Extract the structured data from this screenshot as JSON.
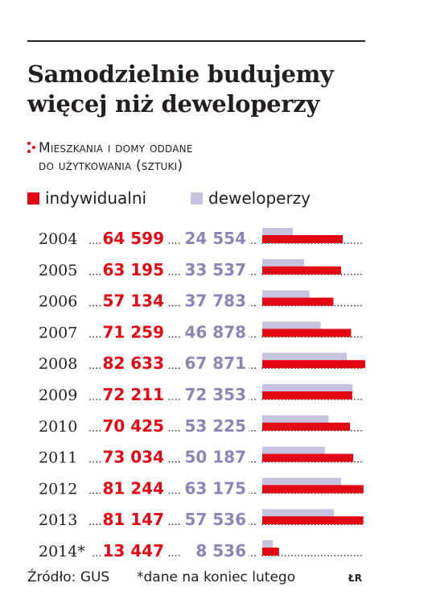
{
  "chart_data": {
    "type": "bar",
    "title": "Samodzielnie budujemy więcej niż deweloperzy",
    "title_lines": [
      "Samodzielnie budujemy",
      "więcej niż deweloperzy"
    ],
    "subtitle": "Mieszkania i domy oddane do użytkowania (sztuki)",
    "subtitle_lines": [
      "Mieszkania i domy oddane",
      "do użytkowania (sztuki)"
    ],
    "categories": [
      "2004",
      "2005",
      "2006",
      "2007",
      "2008",
      "2009",
      "2010",
      "2011",
      "2012",
      "2013",
      "2014*"
    ],
    "series": [
      {
        "name": "indywidualni",
        "color": "#e30613",
        "values": [
          64599,
          63195,
          57134,
          71259,
          82633,
          72211,
          70425,
          73034,
          81244,
          81147,
          13447
        ],
        "labels": [
          "64 599",
          "63 195",
          "57 134",
          "71 259",
          "82 633",
          "72 211",
          "70 425",
          "73 034",
          "81 244",
          "81 147",
          "13 447"
        ]
      },
      {
        "name": "deweloperzy",
        "color": "#c5c3dd",
        "values": [
          24554,
          33537,
          37783,
          46878,
          67871,
          72353,
          53225,
          50187,
          63175,
          57536,
          8536
        ],
        "labels": [
          "24 554",
          "33 537",
          "37 783",
          "46 878",
          "67 871",
          "72 353",
          "53 225",
          "50 187",
          "63 175",
          "57 536",
          "8 536"
        ]
      }
    ],
    "legend_position": "top-left",
    "grid": false
  },
  "footer": {
    "source": "Źródło: GUS",
    "note": "*dane na koniec lutego",
    "author": "ŁR"
  },
  "colors": {
    "accent_red": "#e30613",
    "value_purple": "#8c86b4",
    "bar_lavender": "#c5c3dd",
    "text": "#231f20"
  }
}
